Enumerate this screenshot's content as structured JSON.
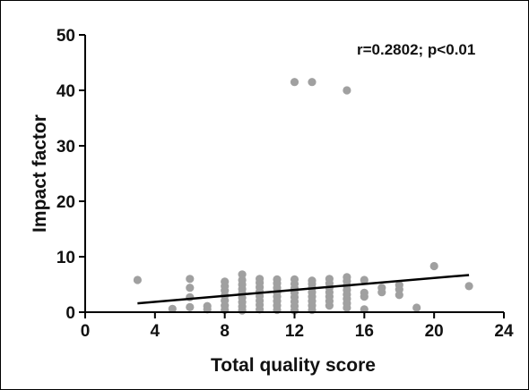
{
  "chart_data": {
    "type": "scatter",
    "xlabel": "Total quality score",
    "ylabel": "Impact  factor",
    "annotation": "r=0.2802; p<0.01",
    "xlim": [
      0,
      24
    ],
    "ylim": [
      0,
      50
    ],
    "xticks": [
      0,
      4,
      8,
      12,
      16,
      20,
      24
    ],
    "yticks": [
      0,
      10,
      20,
      30,
      40,
      50
    ],
    "grid": false,
    "point_color": "#a0a0a0",
    "line_color": "#000000",
    "points": [
      [
        3,
        5.8
      ],
      [
        5,
        0.6
      ],
      [
        6,
        0.9
      ],
      [
        6,
        2.7
      ],
      [
        6,
        4.4
      ],
      [
        6,
        6.0
      ],
      [
        7,
        0.5
      ],
      [
        7,
        1.1
      ],
      [
        8,
        0.4
      ],
      [
        8,
        1.2
      ],
      [
        8,
        2.1
      ],
      [
        8,
        3.0
      ],
      [
        8,
        3.9
      ],
      [
        8,
        4.7
      ],
      [
        8,
        5.5
      ],
      [
        9,
        0.3
      ],
      [
        9,
        1.0
      ],
      [
        9,
        1.8
      ],
      [
        9,
        2.6
      ],
      [
        9,
        3.4
      ],
      [
        9,
        4.2
      ],
      [
        9,
        5.0
      ],
      [
        9,
        5.8
      ],
      [
        9,
        6.8
      ],
      [
        10,
        0.5
      ],
      [
        10,
        1.3
      ],
      [
        10,
        2.1
      ],
      [
        10,
        2.9
      ],
      [
        10,
        3.7
      ],
      [
        10,
        4.5
      ],
      [
        10,
        5.3
      ],
      [
        10,
        6.0
      ],
      [
        11,
        0.4
      ],
      [
        11,
        1.2
      ],
      [
        11,
        2.0
      ],
      [
        11,
        2.8
      ],
      [
        11,
        3.6
      ],
      [
        11,
        4.4
      ],
      [
        11,
        5.2
      ],
      [
        11,
        5.9
      ],
      [
        12,
        0.3
      ],
      [
        12,
        1.1
      ],
      [
        12,
        1.9
      ],
      [
        12,
        2.7
      ],
      [
        12,
        3.5
      ],
      [
        12,
        4.3
      ],
      [
        12,
        5.1
      ],
      [
        12,
        5.9
      ],
      [
        12,
        41.5
      ],
      [
        13,
        0.4
      ],
      [
        13,
        1.2
      ],
      [
        13,
        2.0
      ],
      [
        13,
        2.8
      ],
      [
        13,
        3.6
      ],
      [
        13,
        4.4
      ],
      [
        13,
        5.1
      ],
      [
        13,
        5.7
      ],
      [
        13,
        41.5
      ],
      [
        14,
        1.2
      ],
      [
        14,
        2.0
      ],
      [
        14,
        2.8
      ],
      [
        14,
        3.6
      ],
      [
        14,
        4.4
      ],
      [
        14,
        5.2
      ],
      [
        14,
        6.0
      ],
      [
        15,
        0.8
      ],
      [
        15,
        1.6
      ],
      [
        15,
        2.4
      ],
      [
        15,
        3.2
      ],
      [
        15,
        4.0
      ],
      [
        15,
        4.8
      ],
      [
        15,
        5.6
      ],
      [
        15,
        6.3
      ],
      [
        15,
        40.0
      ],
      [
        16,
        0.5
      ],
      [
        16,
        2.8
      ],
      [
        16,
        3.5
      ],
      [
        16,
        5.8
      ],
      [
        17,
        3.6
      ],
      [
        17,
        4.4
      ],
      [
        18,
        3.1
      ],
      [
        18,
        4.1
      ],
      [
        18,
        4.9
      ],
      [
        19,
        0.8
      ],
      [
        20,
        8.3
      ],
      [
        22,
        4.7
      ]
    ],
    "regression": {
      "x": [
        3,
        22
      ],
      "y": [
        1.6,
        6.7
      ]
    }
  }
}
